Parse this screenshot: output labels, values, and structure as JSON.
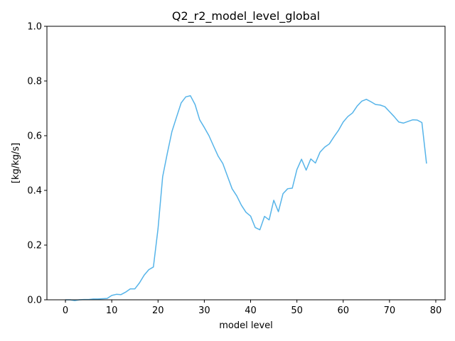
{
  "chart_data": {
    "type": "line",
    "title": "Q2_r2_model_level_global",
    "xlabel": "model level",
    "ylabel": "[kg/kg/s]",
    "xlim": [
      -4,
      82
    ],
    "ylim": [
      0,
      1.0
    ],
    "x_ticks": [
      0,
      10,
      20,
      30,
      40,
      50,
      60,
      70,
      80
    ],
    "y_ticks": [
      0.0,
      0.2,
      0.4,
      0.6,
      0.8,
      1.0
    ],
    "x_tick_labels": [
      "0",
      "10",
      "20",
      "30",
      "40",
      "50",
      "60",
      "70",
      "80"
    ],
    "y_tick_labels": [
      "0.0",
      "0.2",
      "0.4",
      "0.6",
      "0.8",
      "1.0"
    ],
    "grid": false,
    "line_color": "#56b4e9",
    "series": [
      {
        "x": [
          0,
          1,
          2,
          3,
          4,
          5,
          6,
          7,
          8,
          9,
          10,
          11,
          12,
          13,
          14,
          15,
          16,
          17,
          18,
          19,
          20,
          21,
          22,
          23,
          24,
          25,
          26,
          27,
          28,
          29,
          30,
          31,
          32,
          33,
          34,
          35,
          36,
          37,
          38,
          39,
          40,
          41,
          42,
          43,
          44,
          45,
          46,
          47,
          48,
          49,
          50,
          51,
          52,
          53,
          54,
          55,
          56,
          57,
          58,
          59,
          60,
          61,
          62,
          63,
          64,
          65,
          66,
          67,
          68,
          69,
          70,
          71,
          72,
          73,
          74,
          75,
          76,
          77,
          78
        ],
        "values": [
          0.0,
          0.0,
          -0.003,
          0.0,
          0.001,
          0.001,
          0.003,
          0.003,
          0.004,
          0.005,
          0.016,
          0.02,
          0.019,
          0.028,
          0.04,
          0.04,
          0.062,
          0.09,
          0.11,
          0.12,
          0.26,
          0.45,
          0.535,
          0.615,
          0.668,
          0.72,
          0.742,
          0.746,
          0.714,
          0.658,
          0.63,
          0.6,
          0.562,
          0.525,
          0.498,
          0.452,
          0.406,
          0.38,
          0.346,
          0.32,
          0.306,
          0.264,
          0.256,
          0.305,
          0.292,
          0.364,
          0.322,
          0.388,
          0.406,
          0.408,
          0.476,
          0.514,
          0.474,
          0.515,
          0.5,
          0.54,
          0.558,
          0.57,
          0.596,
          0.62,
          0.65,
          0.67,
          0.683,
          0.708,
          0.726,
          0.733,
          0.724,
          0.714,
          0.712,
          0.706,
          0.688,
          0.67,
          0.65,
          0.646,
          0.652,
          0.658,
          0.657,
          0.648,
          0.498
        ]
      }
    ]
  }
}
